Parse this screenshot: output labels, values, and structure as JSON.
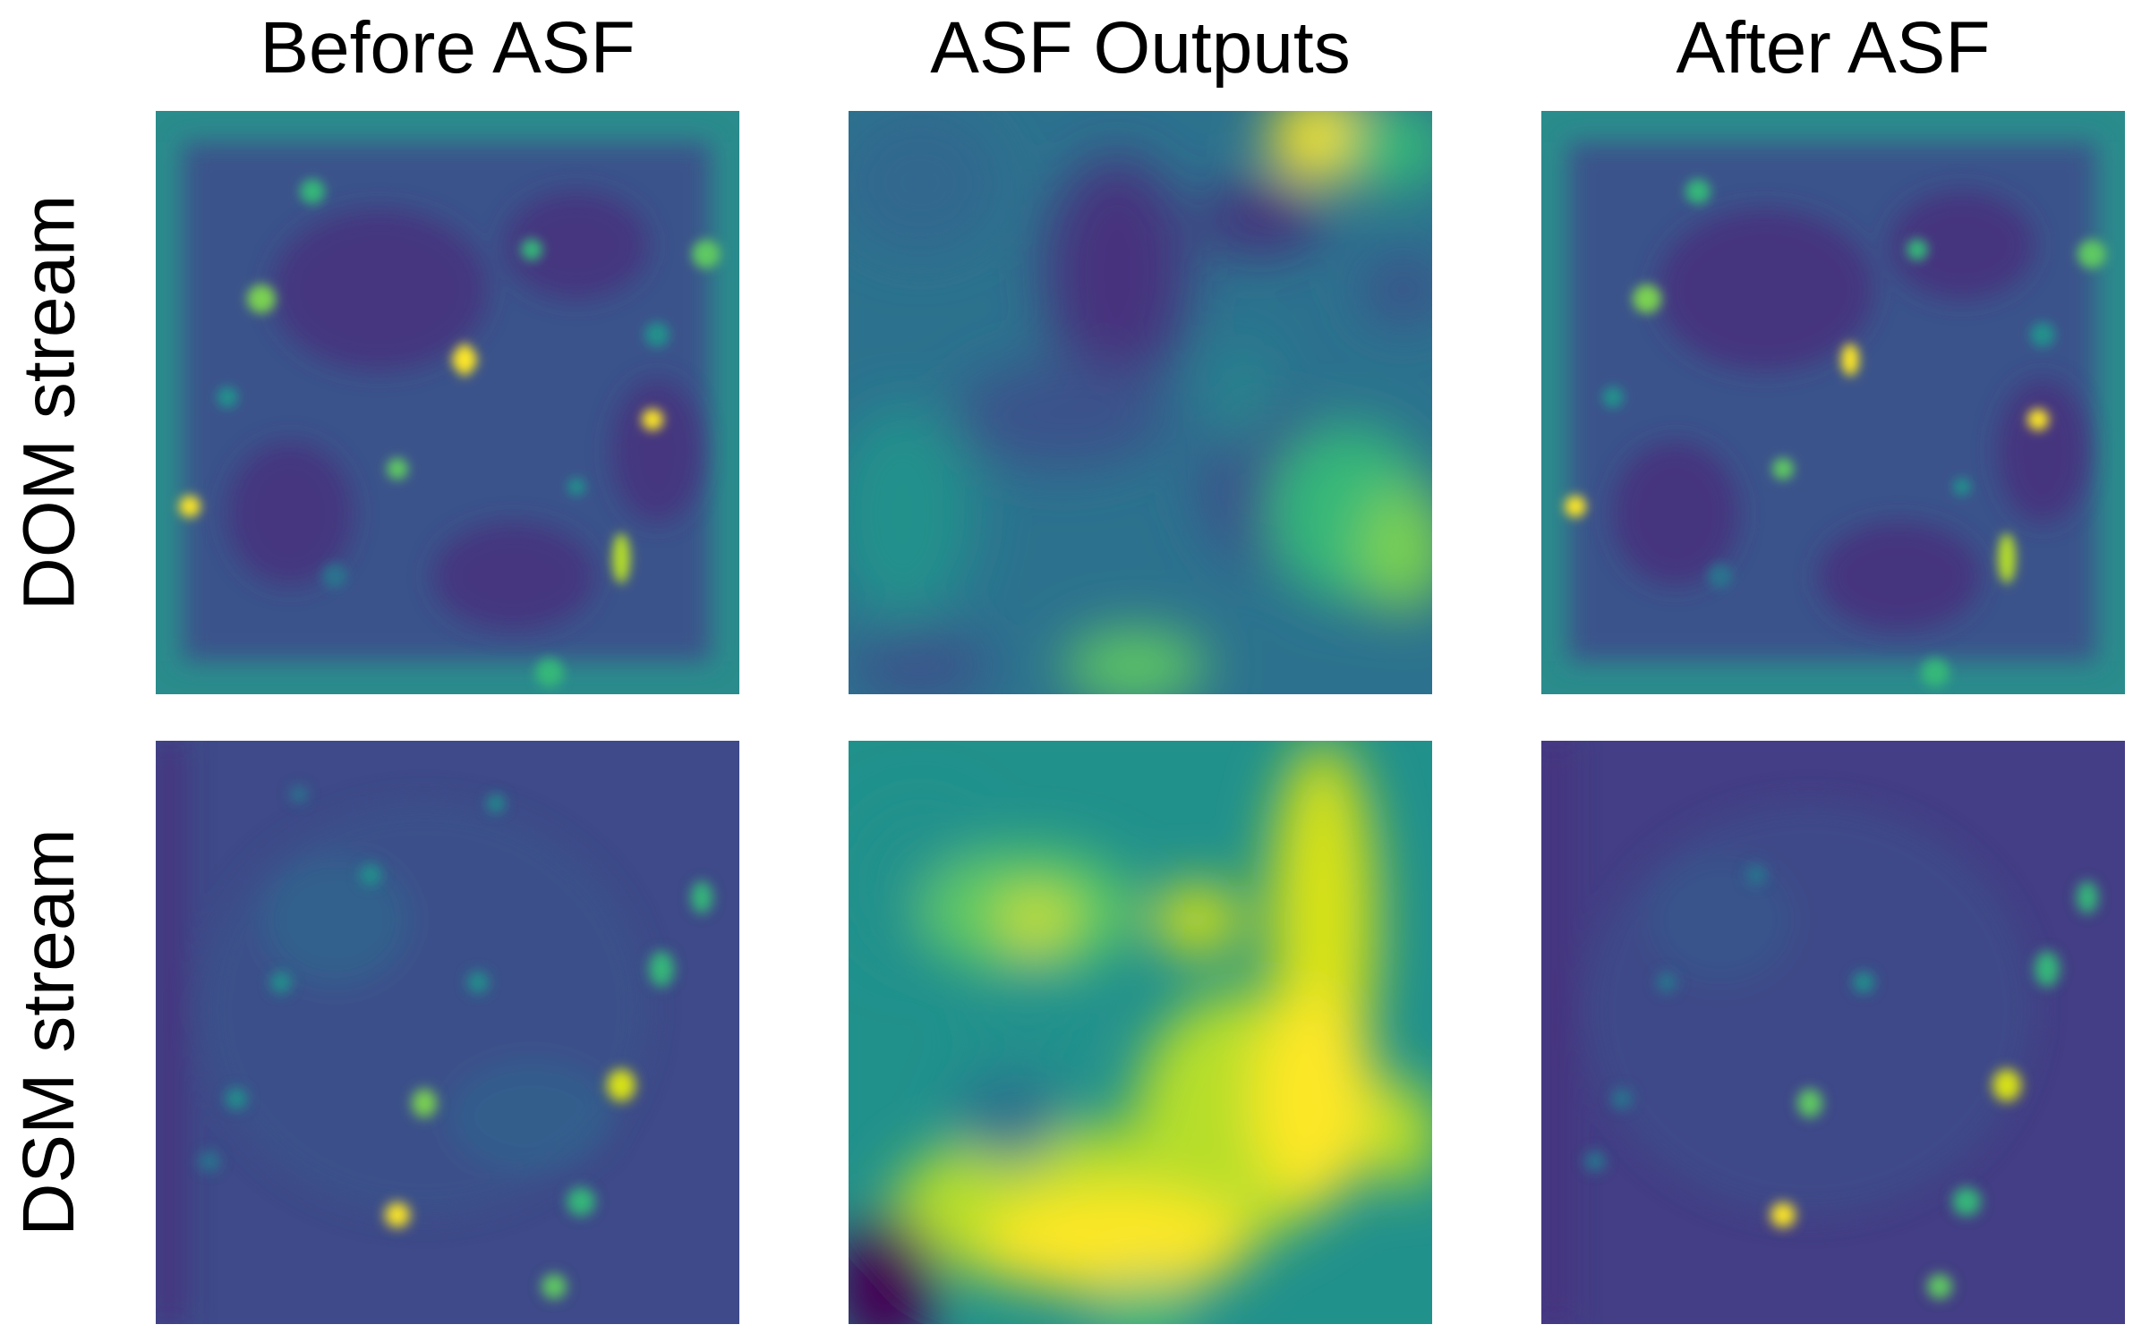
{
  "column_titles": [
    "Before ASF",
    "ASF Outputs",
    "After ASF"
  ],
  "row_labels": [
    "DOM stream",
    "DSM stream"
  ],
  "colormap": {
    "name": "viridis",
    "low": "#440154",
    "mid_low": "#3b528b",
    "mid": "#21918c",
    "mid_high": "#5ec962",
    "high": "#fde725"
  },
  "panels": [
    {
      "row": "DOM stream",
      "column": "Before ASF",
      "icon": "heatmap"
    },
    {
      "row": "DOM stream",
      "column": "ASF Outputs",
      "icon": "heatmap"
    },
    {
      "row": "DOM stream",
      "column": "After ASF",
      "icon": "heatmap"
    },
    {
      "row": "DSM stream",
      "column": "Before ASF",
      "icon": "heatmap"
    },
    {
      "row": "DSM stream",
      "column": "ASF Outputs",
      "icon": "heatmap"
    },
    {
      "row": "DSM stream",
      "column": "After ASF",
      "icon": "heatmap"
    }
  ]
}
